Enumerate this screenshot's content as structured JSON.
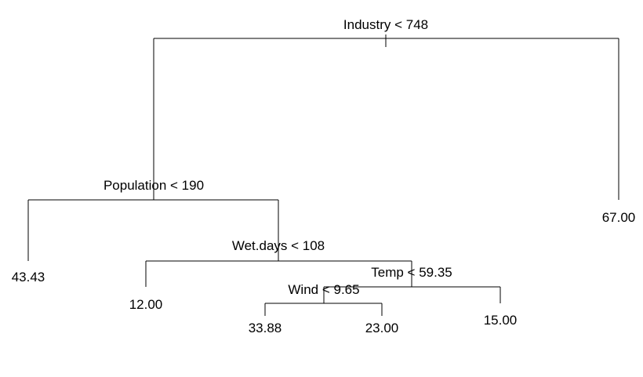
{
  "tree": {
    "splits": {
      "industry": "Industry < 748",
      "population": "Population < 190",
      "wet_days": "Wet.days < 108",
      "temp": "Temp < 59.35",
      "wind": "Wind < 9.65"
    },
    "leaves": {
      "l1": "43.43",
      "l2": "12.00",
      "l3": "33.88",
      "l4": "23.00",
      "l5": "15.00",
      "l6": "67.00"
    }
  }
}
